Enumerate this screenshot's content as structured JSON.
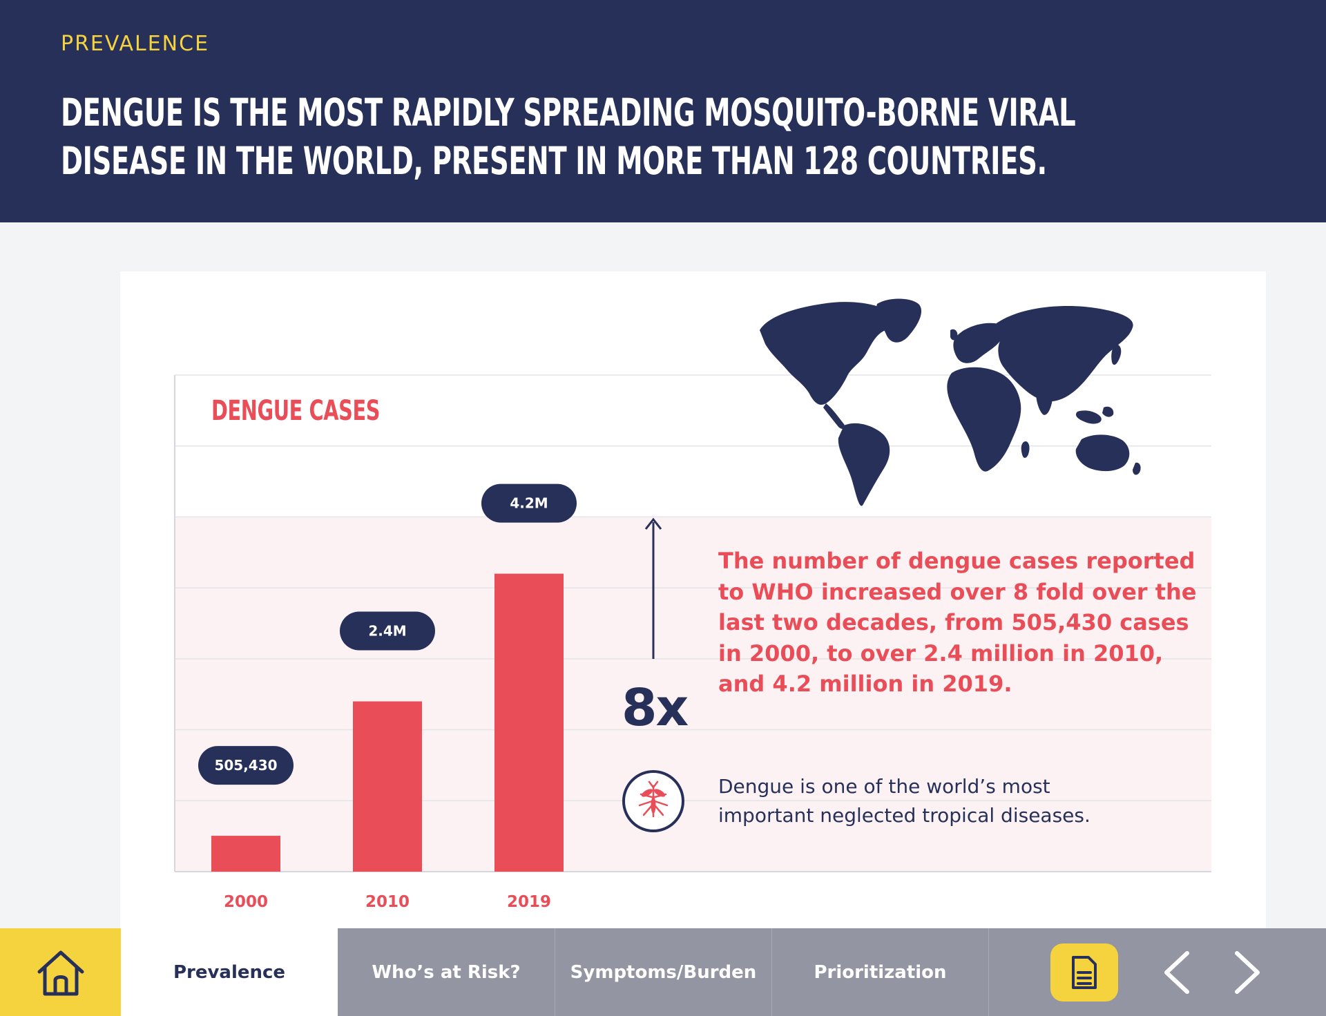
{
  "header": {
    "eyebrow": "PREVALENCE",
    "headline": "Dengue is the most rapidly spreading mosquito-borne viral disease in the world, present in more than 128 countries."
  },
  "chart_data": {
    "type": "bar",
    "title": "DENGUE CASES",
    "categories": [
      "2000",
      "2010",
      "2019"
    ],
    "values": [
      505430,
      2400000,
      4200000
    ],
    "data_labels": [
      "505,430",
      "2.4M",
      "4.2M"
    ],
    "ylim": [
      0,
      7000000
    ],
    "grid": true,
    "colors": {
      "bar": "#e94e58",
      "label_pill": "#273059",
      "band": "#fdf2f3"
    }
  },
  "callouts": {
    "multiplier": "8x",
    "main_text": "The number of dengue cases reported to WHO increased over 8 fold over the last two decades, from 505,430 cases in 2000, to over 2.4 million in 2010, and 4.2 million in 2019.",
    "sub_text": "Dengue is one of the world’s most important neglected tropical diseases.",
    "icons": {
      "arrow": "up-arrow-icon",
      "mosquito": "mosquito-icon",
      "map": "world-map-icon"
    }
  },
  "nav": {
    "home_icon": "home-icon",
    "tabs": [
      {
        "label": "Prevalence",
        "active": true
      },
      {
        "label": "Who’s at Risk?",
        "active": false
      },
      {
        "label": "Symptoms/Burden",
        "active": false
      },
      {
        "label": "Prioritization",
        "active": false
      }
    ],
    "notes_icon": "document-icon",
    "prev_icon": "chevron-left-icon",
    "next_icon": "chevron-right-icon"
  },
  "colors": {
    "navy": "#273059",
    "yellow": "#f5d33f",
    "red": "#e94e58",
    "gray_nav": "#9396a2",
    "background": "#f3f4f6"
  }
}
